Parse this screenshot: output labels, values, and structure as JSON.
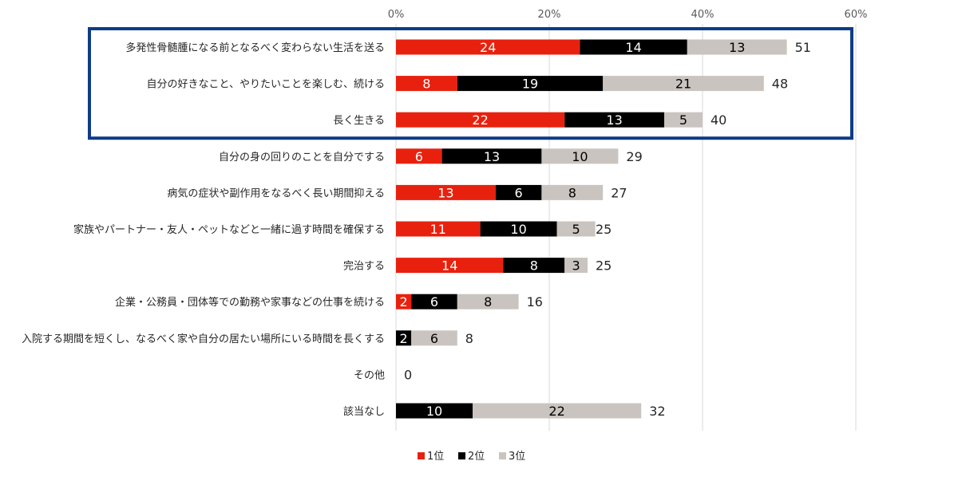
{
  "chart_data": {
    "type": "bar",
    "orientation": "horizontal",
    "stacked": true,
    "x_axis": {
      "min": 0,
      "max": 60,
      "ticks": [
        0,
        20,
        40,
        60
      ],
      "tick_labels": [
        "0%",
        "20%",
        "40%",
        "60%"
      ],
      "position": "top"
    },
    "grid": true,
    "legend_position": "bottom",
    "categories": [
      "多発性骨髄腫になる前となるべく変わらない生活を送る",
      "自分の好きなこと、やりたいことを楽しむ、続ける",
      "長く生きる",
      "自分の身の回りのことを自分でする",
      "病気の症状や副作用をなるべく長い期間抑える",
      "家族やパートナー・友人・ペットなどと一緒に過す時間を確保する",
      "完治する",
      "企業・公務員・団体等での勤務や家事などの仕事を続ける",
      "入院する期間を短くし、なるべく家や自分の居たい場所にいる時間を長くする",
      "その他",
      "該当なし"
    ],
    "series": [
      {
        "name": "1位",
        "color": "#E8210E",
        "label_color": "#ffffff",
        "values": [
          24,
          8,
          22,
          6,
          13,
          11,
          14,
          2,
          0,
          0,
          0
        ]
      },
      {
        "name": "2位",
        "color": "#000000",
        "label_color": "#ffffff",
        "values": [
          14,
          19,
          13,
          13,
          6,
          10,
          8,
          6,
          2,
          0,
          10
        ]
      },
      {
        "name": "3位",
        "color": "#C9C4BF",
        "label_color": "#000000",
        "values": [
          13,
          21,
          5,
          10,
          8,
          5,
          3,
          8,
          6,
          0,
          22
        ]
      }
    ],
    "totals": [
      51,
      48,
      40,
      29,
      27,
      25,
      25,
      16,
      8,
      0,
      32
    ],
    "highlight": {
      "rows": [
        0,
        1,
        2
      ],
      "color": "#0E3C86"
    }
  }
}
